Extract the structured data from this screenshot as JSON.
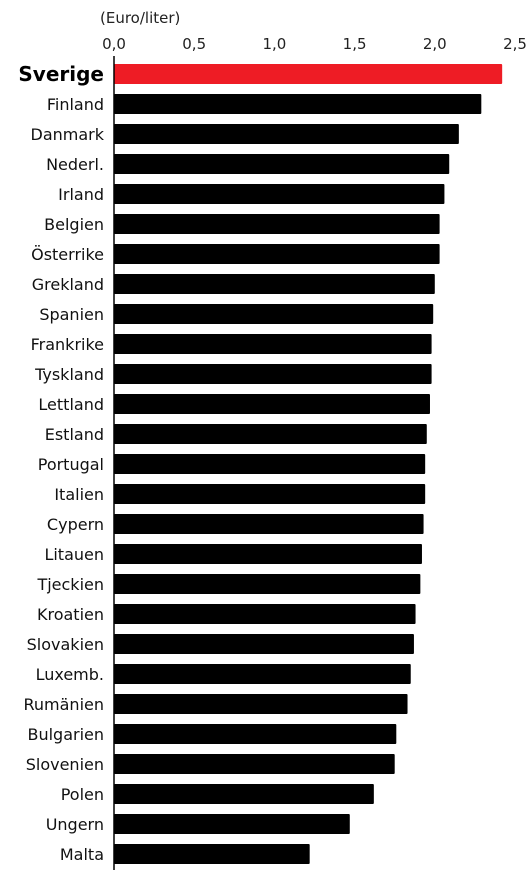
{
  "chart_data": {
    "type": "bar",
    "orientation": "horizontal",
    "unit_label": "(Euro/liter)",
    "xlim": [
      0,
      2.5
    ],
    "ticks": [
      "0,0",
      "0,5",
      "1,0",
      "1,5",
      "2,0",
      "2,5"
    ],
    "tick_values": [
      0,
      0.5,
      1.0,
      1.5,
      2.0,
      2.5
    ],
    "grid": false,
    "highlight": "Sverige",
    "colors": {
      "bar": "#000000",
      "highlight": "#ee1c25"
    },
    "categories": [
      "Sverige",
      "Finland",
      "Danmark",
      "Nederl.",
      "Irland",
      "Belgien",
      "Österrike",
      "Grekland",
      "Spanien",
      "Frankrike",
      "Tyskland",
      "Lettland",
      "Estland",
      "Portugal",
      "Italien",
      "Cypern",
      "Litauen",
      "Tjeckien",
      "Kroatien",
      "Slovakien",
      "Luxemb.",
      "Rumänien",
      "Bulgarien",
      "Slovenien",
      "Polen",
      "Ungern",
      "Malta"
    ],
    "values": [
      2.42,
      2.29,
      2.15,
      2.09,
      2.06,
      2.03,
      2.03,
      2.0,
      1.99,
      1.98,
      1.98,
      1.97,
      1.95,
      1.94,
      1.94,
      1.93,
      1.92,
      1.91,
      1.88,
      1.87,
      1.85,
      1.83,
      1.76,
      1.75,
      1.62,
      1.47,
      1.22
    ]
  }
}
